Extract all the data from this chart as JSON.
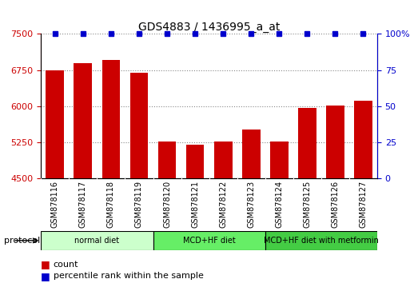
{
  "title": "GDS4883 / 1436995_a_at",
  "samples": [
    "GSM878116",
    "GSM878117",
    "GSM878118",
    "GSM878119",
    "GSM878120",
    "GSM878121",
    "GSM878122",
    "GSM878123",
    "GSM878124",
    "GSM878125",
    "GSM878126",
    "GSM878127"
  ],
  "counts": [
    6750,
    6900,
    6960,
    6700,
    5270,
    5200,
    5270,
    5520,
    5270,
    5960,
    6020,
    6110
  ],
  "percentile_ranks": [
    100,
    100,
    100,
    100,
    100,
    100,
    100,
    100,
    100,
    100,
    100,
    100
  ],
  "ylim_left": [
    4500,
    7500
  ],
  "ylim_right": [
    0,
    100
  ],
  "yticks_left": [
    4500,
    5250,
    6000,
    6750,
    7500
  ],
  "yticks_right": [
    0,
    25,
    50,
    75,
    100
  ],
  "bar_color": "#cc0000",
  "dot_color": "#0000cc",
  "groups": [
    {
      "label": "normal diet",
      "start": 0,
      "end": 3,
      "color": "#ccffcc"
    },
    {
      "label": "MCD+HF diet",
      "start": 4,
      "end": 7,
      "color": "#66ee66"
    },
    {
      "label": "MCD+HF diet with metformin",
      "start": 8,
      "end": 11,
      "color": "#44cc44"
    }
  ],
  "legend_count_label": "count",
  "legend_percentile_label": "percentile rank within the sample",
  "protocol_label": "protocol",
  "background_color": "#ffffff",
  "grid_color": "#888888",
  "xtick_bg_color": "#cccccc"
}
